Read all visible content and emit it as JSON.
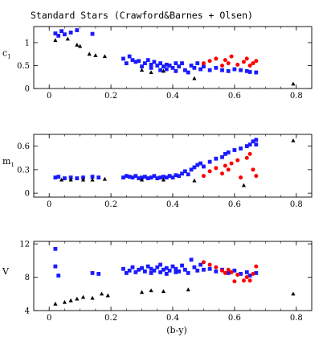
{
  "figure_title": "Standard Stars (Crawford&Barnes + Olsen)",
  "shared_xlabel": "(b-y)",
  "colors": {
    "blue": "#1a1aff",
    "red": "#ff0000",
    "black": "#000000",
    "axis": "#000000"
  },
  "legend": "none",
  "chart_data": [
    {
      "type": "scatter",
      "panel": "c1",
      "title": "",
      "xlabel": "",
      "ylabel_main": "c",
      "ylabel_sub": "1",
      "xlim": [
        -0.05,
        0.85
      ],
      "ylim": [
        0,
        1.35
      ],
      "xticks": [
        "0",
        "0.2",
        "0.4",
        "0.6",
        "0.8"
      ],
      "yticks": [
        "0",
        "0.5",
        "1"
      ],
      "grid": false,
      "series": [
        {
          "color": "blue",
          "marker": "square",
          "points": [
            [
              0.02,
              1.2
            ],
            [
              0.03,
              1.15
            ],
            [
              0.04,
              1.25
            ],
            [
              0.05,
              1.18
            ],
            [
              0.07,
              1.22
            ],
            [
              0.09,
              1.27
            ],
            [
              0.14,
              1.19
            ],
            [
              0.24,
              0.65
            ],
            [
              0.25,
              0.55
            ],
            [
              0.26,
              0.7
            ],
            [
              0.27,
              0.62
            ],
            [
              0.28,
              0.58
            ],
            [
              0.29,
              0.6
            ],
            [
              0.3,
              0.48
            ],
            [
              0.31,
              0.55
            ],
            [
              0.32,
              0.62
            ],
            [
              0.33,
              0.45
            ],
            [
              0.33,
              0.52
            ],
            [
              0.34,
              0.58
            ],
            [
              0.35,
              0.5
            ],
            [
              0.36,
              0.4
            ],
            [
              0.36,
              0.55
            ],
            [
              0.37,
              0.48
            ],
            [
              0.38,
              0.42
            ],
            [
              0.38,
              0.52
            ],
            [
              0.39,
              0.5
            ],
            [
              0.4,
              0.45
            ],
            [
              0.41,
              0.55
            ],
            [
              0.41,
              0.38
            ],
            [
              0.42,
              0.48
            ],
            [
              0.43,
              0.55
            ],
            [
              0.44,
              0.4
            ],
            [
              0.45,
              0.35
            ],
            [
              0.46,
              0.5
            ],
            [
              0.47,
              0.45
            ],
            [
              0.48,
              0.55
            ],
            [
              0.49,
              0.42
            ],
            [
              0.5,
              0.48
            ],
            [
              0.52,
              0.4
            ],
            [
              0.54,
              0.45
            ],
            [
              0.56,
              0.4
            ],
            [
              0.58,
              0.38
            ],
            [
              0.6,
              0.42
            ],
            [
              0.62,
              0.4
            ],
            [
              0.64,
              0.38
            ],
            [
              0.65,
              0.36
            ],
            [
              0.67,
              0.35
            ]
          ]
        },
        {
          "color": "red",
          "marker": "circle",
          "points": [
            [
              0.5,
              0.55
            ],
            [
              0.52,
              0.6
            ],
            [
              0.54,
              0.65
            ],
            [
              0.56,
              0.5
            ],
            [
              0.57,
              0.62
            ],
            [
              0.58,
              0.55
            ],
            [
              0.59,
              0.7
            ],
            [
              0.61,
              0.52
            ],
            [
              0.63,
              0.58
            ],
            [
              0.64,
              0.65
            ],
            [
              0.65,
              0.5
            ],
            [
              0.66,
              0.55
            ],
            [
              0.67,
              0.6
            ]
          ]
        },
        {
          "color": "black",
          "marker": "triangle",
          "points": [
            [
              0.02,
              1.05
            ],
            [
              0.06,
              1.08
            ],
            [
              0.09,
              0.95
            ],
            [
              0.1,
              0.92
            ],
            [
              0.13,
              0.75
            ],
            [
              0.15,
              0.72
            ],
            [
              0.18,
              0.7
            ],
            [
              0.3,
              0.4
            ],
            [
              0.33,
              0.35
            ],
            [
              0.37,
              0.38
            ],
            [
              0.47,
              0.22
            ],
            [
              0.79,
              0.1
            ]
          ]
        }
      ]
    },
    {
      "type": "scatter",
      "panel": "m1",
      "title": "",
      "xlabel": "",
      "ylabel_main": "m",
      "ylabel_sub": "1",
      "xlim": [
        -0.05,
        0.85
      ],
      "ylim": [
        -0.05,
        0.75
      ],
      "xticks": [
        "0",
        "0.2",
        "0.4",
        "0.6",
        "0.8"
      ],
      "yticks": [
        "0",
        "0.3",
        "0.6"
      ],
      "grid": false,
      "series": [
        {
          "color": "blue",
          "marker": "square",
          "points": [
            [
              0.02,
              0.2
            ],
            [
              0.03,
              0.21
            ],
            [
              0.05,
              0.19
            ],
            [
              0.07,
              0.2
            ],
            [
              0.09,
              0.19
            ],
            [
              0.11,
              0.2
            ],
            [
              0.14,
              0.21
            ],
            [
              0.16,
              0.2
            ],
            [
              0.24,
              0.2
            ],
            [
              0.25,
              0.22
            ],
            [
              0.26,
              0.21
            ],
            [
              0.27,
              0.2
            ],
            [
              0.28,
              0.22
            ],
            [
              0.29,
              0.19
            ],
            [
              0.3,
              0.2
            ],
            [
              0.31,
              0.21
            ],
            [
              0.32,
              0.19
            ],
            [
              0.33,
              0.2
            ],
            [
              0.34,
              0.22
            ],
            [
              0.35,
              0.19
            ],
            [
              0.36,
              0.2
            ],
            [
              0.37,
              0.21
            ],
            [
              0.38,
              0.2
            ],
            [
              0.39,
              0.22
            ],
            [
              0.4,
              0.2
            ],
            [
              0.41,
              0.23
            ],
            [
              0.42,
              0.22
            ],
            [
              0.43,
              0.25
            ],
            [
              0.44,
              0.28
            ],
            [
              0.45,
              0.24
            ],
            [
              0.46,
              0.3
            ],
            [
              0.47,
              0.33
            ],
            [
              0.48,
              0.36
            ],
            [
              0.49,
              0.38
            ],
            [
              0.5,
              0.34
            ],
            [
              0.52,
              0.4
            ],
            [
              0.54,
              0.44
            ],
            [
              0.56,
              0.46
            ],
            [
              0.57,
              0.5
            ],
            [
              0.58,
              0.52
            ],
            [
              0.6,
              0.55
            ],
            [
              0.62,
              0.57
            ],
            [
              0.64,
              0.6
            ],
            [
              0.65,
              0.62
            ],
            [
              0.66,
              0.66
            ],
            [
              0.67,
              0.68
            ],
            [
              0.67,
              0.62
            ]
          ]
        },
        {
          "color": "red",
          "marker": "circle",
          "points": [
            [
              0.5,
              0.22
            ],
            [
              0.52,
              0.28
            ],
            [
              0.54,
              0.32
            ],
            [
              0.56,
              0.25
            ],
            [
              0.57,
              0.35
            ],
            [
              0.58,
              0.3
            ],
            [
              0.59,
              0.38
            ],
            [
              0.61,
              0.42
            ],
            [
              0.62,
              0.2
            ],
            [
              0.64,
              0.45
            ],
            [
              0.65,
              0.5
            ],
            [
              0.66,
              0.3
            ],
            [
              0.67,
              0.22
            ]
          ]
        },
        {
          "color": "black",
          "marker": "triangle",
          "points": [
            [
              0.04,
              0.17
            ],
            [
              0.07,
              0.17
            ],
            [
              0.11,
              0.17
            ],
            [
              0.14,
              0.17
            ],
            [
              0.18,
              0.18
            ],
            [
              0.3,
              0.17
            ],
            [
              0.37,
              0.17
            ],
            [
              0.47,
              0.16
            ],
            [
              0.63,
              0.1
            ],
            [
              0.79,
              0.67
            ]
          ]
        }
      ]
    },
    {
      "type": "scatter",
      "panel": "V",
      "title": "",
      "xlabel": "(b-y)",
      "ylabel_main": "V",
      "ylabel_sub": "",
      "xlim": [
        -0.05,
        0.85
      ],
      "ylim": [
        4,
        12.3
      ],
      "xticks": [
        "0",
        "0.2",
        "0.4",
        "0.6",
        "0.8"
      ],
      "yticks": [
        "4",
        "8",
        "12"
      ],
      "grid": false,
      "series": [
        {
          "color": "blue",
          "marker": "square",
          "points": [
            [
              0.02,
              11.4
            ],
            [
              0.02,
              9.3
            ],
            [
              0.03,
              8.2
            ],
            [
              0.14,
              8.5
            ],
            [
              0.16,
              8.4
            ],
            [
              0.24,
              9.0
            ],
            [
              0.25,
              8.5
            ],
            [
              0.26,
              8.8
            ],
            [
              0.27,
              9.2
            ],
            [
              0.28,
              8.6
            ],
            [
              0.29,
              8.9
            ],
            [
              0.3,
              9.1
            ],
            [
              0.31,
              8.7
            ],
            [
              0.32,
              9.3
            ],
            [
              0.33,
              8.5
            ],
            [
              0.33,
              9.0
            ],
            [
              0.34,
              8.8
            ],
            [
              0.35,
              9.2
            ],
            [
              0.36,
              8.6
            ],
            [
              0.36,
              9.5
            ],
            [
              0.37,
              8.9
            ],
            [
              0.38,
              8.4
            ],
            [
              0.38,
              9.1
            ],
            [
              0.39,
              8.8
            ],
            [
              0.4,
              9.3
            ],
            [
              0.41,
              8.6
            ],
            [
              0.41,
              9.0
            ],
            [
              0.42,
              8.7
            ],
            [
              0.43,
              9.4
            ],
            [
              0.44,
              8.9
            ],
            [
              0.45,
              8.5
            ],
            [
              0.46,
              10.1
            ],
            [
              0.47,
              9.2
            ],
            [
              0.48,
              8.8
            ],
            [
              0.49,
              9.5
            ],
            [
              0.5,
              8.9
            ],
            [
              0.52,
              9.0
            ],
            [
              0.54,
              8.7
            ],
            [
              0.56,
              8.9
            ],
            [
              0.58,
              8.5
            ],
            [
              0.6,
              8.8
            ],
            [
              0.62,
              8.4
            ],
            [
              0.64,
              8.6
            ],
            [
              0.65,
              8.2
            ],
            [
              0.67,
              8.5
            ]
          ]
        },
        {
          "color": "red",
          "marker": "circle",
          "points": [
            [
              0.5,
              9.8
            ],
            [
              0.52,
              9.5
            ],
            [
              0.54,
              9.2
            ],
            [
              0.56,
              8.8
            ],
            [
              0.57,
              8.5
            ],
            [
              0.58,
              8.9
            ],
            [
              0.59,
              8.6
            ],
            [
              0.6,
              7.5
            ],
            [
              0.61,
              8.3
            ],
            [
              0.63,
              7.6
            ],
            [
              0.64,
              8.0
            ],
            [
              0.65,
              7.6
            ],
            [
              0.66,
              8.4
            ],
            [
              0.67,
              9.3
            ]
          ]
        },
        {
          "color": "black",
          "marker": "triangle",
          "points": [
            [
              0.02,
              4.8
            ],
            [
              0.05,
              5.0
            ],
            [
              0.07,
              5.2
            ],
            [
              0.09,
              5.4
            ],
            [
              0.11,
              5.6
            ],
            [
              0.14,
              5.5
            ],
            [
              0.17,
              6.0
            ],
            [
              0.19,
              5.8
            ],
            [
              0.3,
              6.2
            ],
            [
              0.33,
              6.4
            ],
            [
              0.37,
              6.3
            ],
            [
              0.45,
              6.5
            ],
            [
              0.79,
              6.0
            ]
          ]
        }
      ]
    }
  ]
}
